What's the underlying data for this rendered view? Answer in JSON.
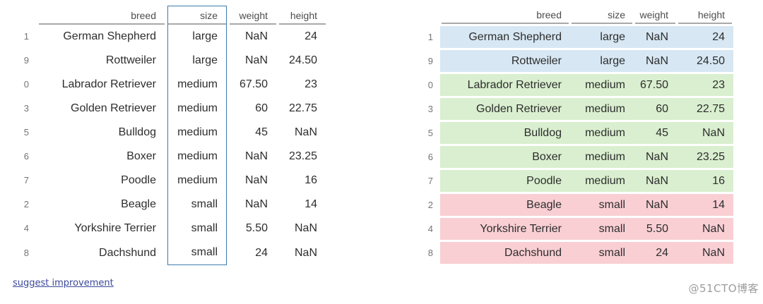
{
  "table": {
    "columns": [
      "breed",
      "size",
      "weight",
      "height"
    ],
    "highlighted_column": "size",
    "rows": [
      {
        "index": "1",
        "cells": [
          "German Shepherd",
          "large",
          "NaN",
          "24"
        ],
        "group": "large"
      },
      {
        "index": "9",
        "cells": [
          "Rottweiler",
          "large",
          "NaN",
          "24.50"
        ],
        "group": "large"
      },
      {
        "index": "0",
        "cells": [
          "Labrador Retriever",
          "medium",
          "67.50",
          "23"
        ],
        "group": "medium"
      },
      {
        "index": "3",
        "cells": [
          "Golden Retriever",
          "medium",
          "60",
          "22.75"
        ],
        "group": "medium"
      },
      {
        "index": "5",
        "cells": [
          "Bulldog",
          "medium",
          "45",
          "NaN"
        ],
        "group": "medium"
      },
      {
        "index": "6",
        "cells": [
          "Boxer",
          "medium",
          "NaN",
          "23.25"
        ],
        "group": "medium"
      },
      {
        "index": "7",
        "cells": [
          "Poodle",
          "medium",
          "NaN",
          "16"
        ],
        "group": "medium"
      },
      {
        "index": "2",
        "cells": [
          "Beagle",
          "small",
          "NaN",
          "14"
        ],
        "group": "small"
      },
      {
        "index": "4",
        "cells": [
          "Yorkshire Terrier",
          "small",
          "5.50",
          "NaN"
        ],
        "group": "small"
      },
      {
        "index": "8",
        "cells": [
          "Dachshund",
          "small",
          "24",
          "NaN"
        ],
        "group": "small"
      }
    ]
  },
  "link": {
    "label": "suggest improvement"
  },
  "watermark": {
    "text": "@51CTO博客"
  },
  "colors": {
    "highlight_border": "#3d7cab",
    "group_large": "#d7e7f3",
    "group_medium": "#d9efcf",
    "group_small": "#f9cfd4",
    "header_line": "#a9a9a9"
  }
}
